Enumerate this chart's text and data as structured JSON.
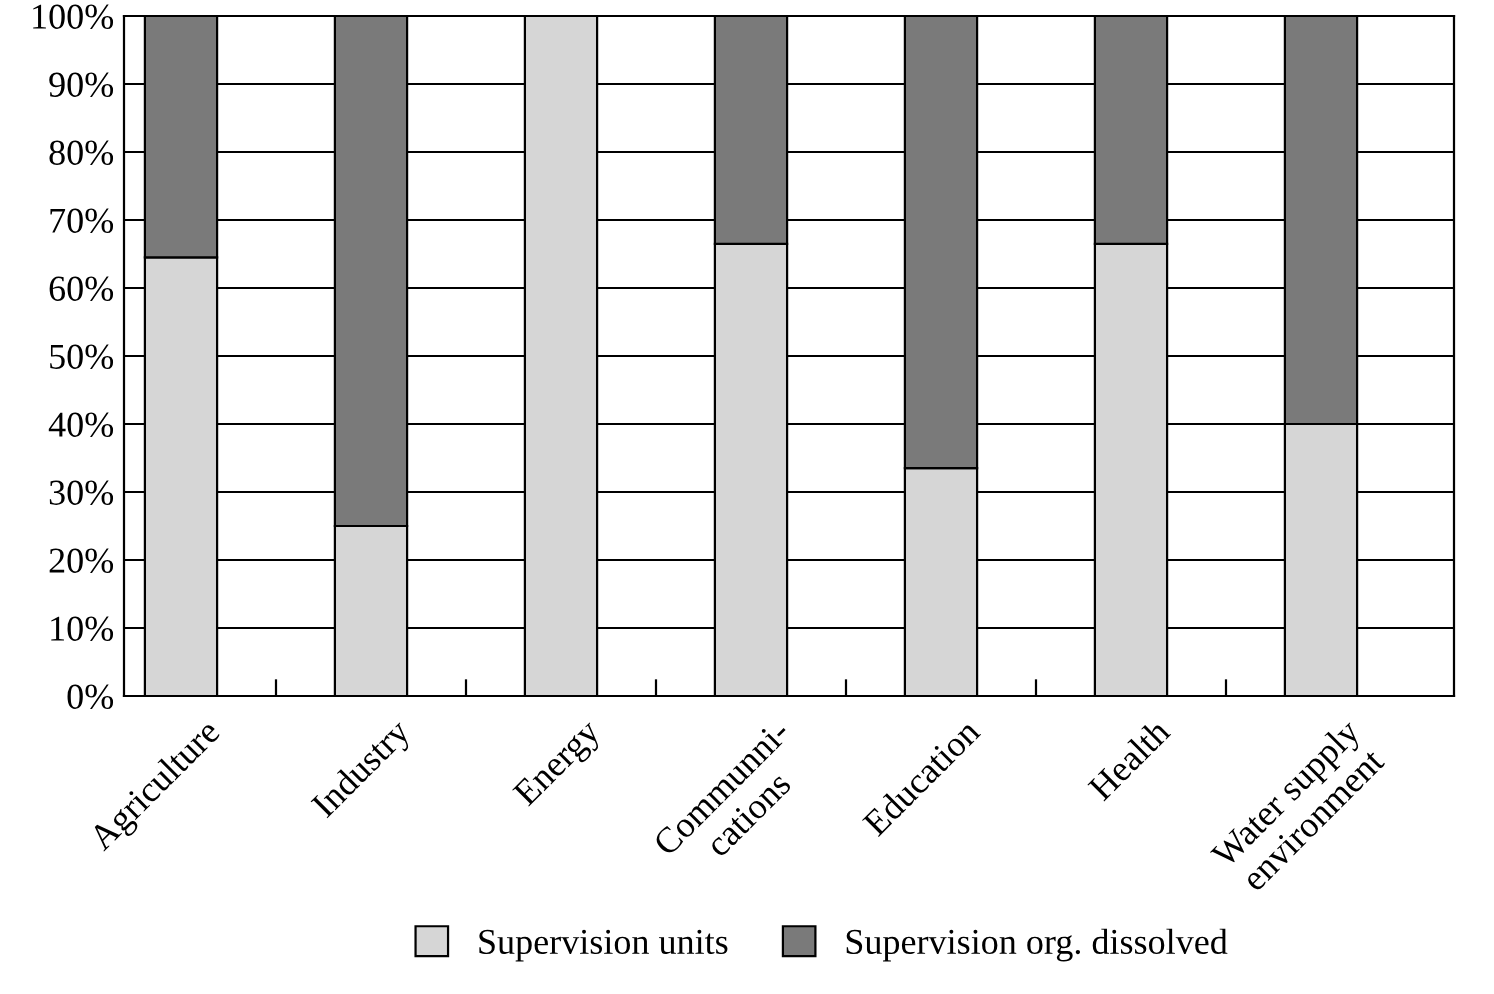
{
  "chart_data": {
    "type": "bar",
    "stacked": true,
    "categories": [
      "Agriculture",
      "Industry",
      "Energy",
      "Communni-\ncations",
      "Education",
      "Health",
      "Water supply\nenvironment"
    ],
    "series": [
      {
        "name": "Supervision units",
        "color": "#d6d6d6",
        "values": [
          64.5,
          25,
          100,
          66.5,
          33.5,
          66.5,
          40
        ]
      },
      {
        "name": "Supervision org. dissolved",
        "color": "#7a7a7a",
        "values": [
          35.5,
          75,
          null,
          33.5,
          66.5,
          33.5,
          60
        ]
      }
    ],
    "ylim": [
      0,
      100
    ],
    "yticks": [
      {
        "value": 0,
        "label": "0%"
      },
      {
        "value": 10,
        "label": "10%"
      },
      {
        "value": 20,
        "label": "20%"
      },
      {
        "value": 30,
        "label": "30%"
      },
      {
        "value": 40,
        "label": "40%"
      },
      {
        "value": 50,
        "label": "50%"
      },
      {
        "value": 60,
        "label": "60%"
      },
      {
        "value": 70,
        "label": "70%"
      },
      {
        "value": 80,
        "label": "80%"
      },
      {
        "value": 90,
        "label": "90%"
      },
      {
        "value": 100,
        "label": "100%"
      }
    ],
    "grid": "y",
    "legend": "bottom"
  }
}
